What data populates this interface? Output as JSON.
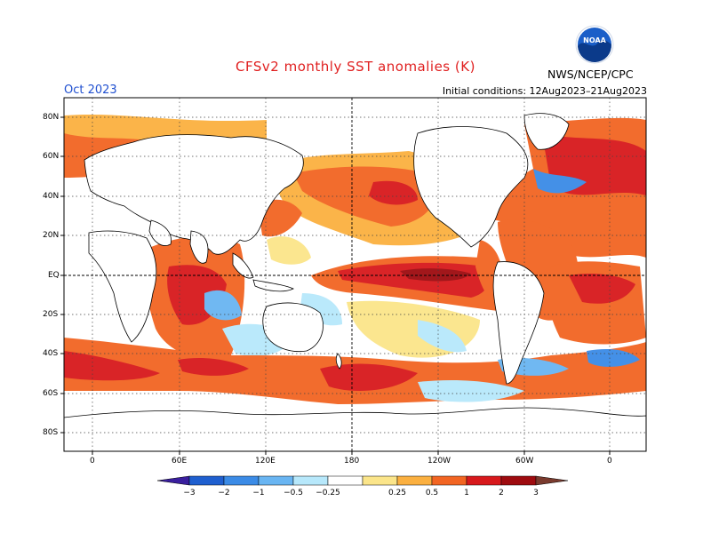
{
  "header": {
    "title": "CFSv2 monthly SST anomalies (K)",
    "month": "Oct 2023",
    "initial_conditions": "Initial conditions: 12Aug2023–21Aug2023",
    "org": "NWS/NCEP/CPC",
    "logo_text": "NOAA"
  },
  "axes": {
    "y_labels": [
      "80N",
      "60N",
      "40N",
      "20N",
      "EQ",
      "20S",
      "40S",
      "60S",
      "80S"
    ],
    "x_labels": [
      "0",
      "60E",
      "120E",
      "180",
      "120W",
      "60W",
      "0"
    ]
  },
  "colorbar": {
    "tick_labels": [
      "−3",
      "−2",
      "−1",
      "−0.5",
      "−0.25",
      "0.25",
      "0.5",
      "1",
      "2",
      "3"
    ],
    "colors": [
      "#3a1f9e",
      "#1f5fcf",
      "#3b8be6",
      "#69b5f2",
      "#b7e8fb",
      "#ffffff",
      "#fbe58a",
      "#fbb040",
      "#f26522",
      "#d7191c",
      "#9e0b0f",
      "#7a3b2e"
    ]
  }
}
